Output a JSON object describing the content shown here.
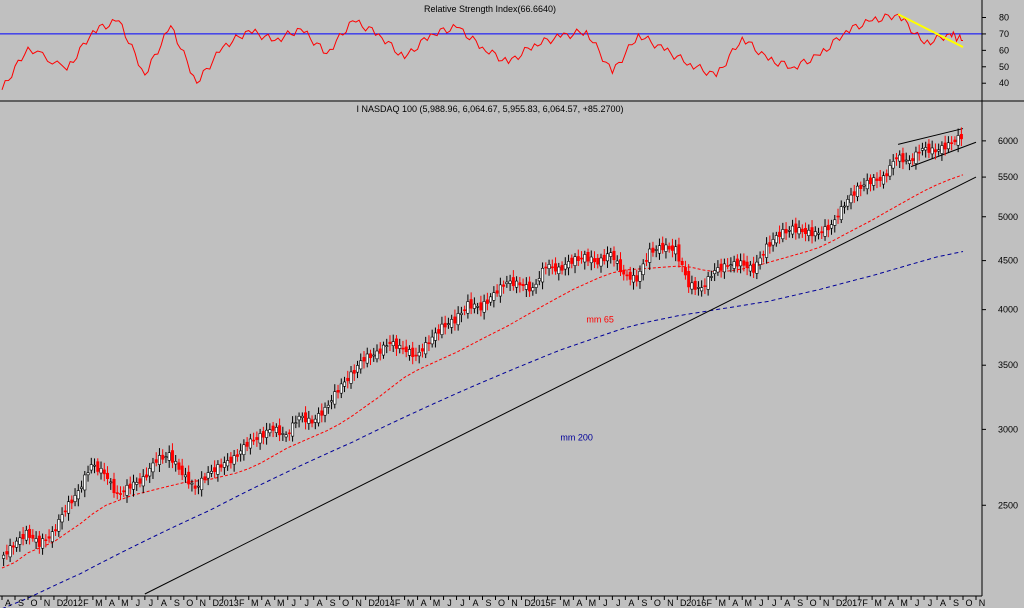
{
  "colors": {
    "background": "#c0c0c0",
    "up_candle": "#000000",
    "down_candle": "#ff0000",
    "rsi_line": "#ff0000",
    "rsi_level": "#0000ff",
    "ma65": "#ff0000",
    "ma200": "#000099",
    "trendline": "#000000",
    "rsi_trendline": "#ffff00"
  },
  "chart_data": [
    {
      "type": "line",
      "title": "Relative Strength Index(66.6640)",
      "ylim": [
        31,
        87
      ],
      "yticks": [
        40,
        50,
        60,
        70,
        80
      ],
      "reference_level": 70,
      "x": [
        "2011-08",
        "2011-10",
        "2012-01",
        "2012-03",
        "2012-05",
        "2012-07",
        "2012-09",
        "2012-11",
        "2013-01",
        "2013-03",
        "2013-05",
        "2013-07",
        "2013-09",
        "2013-11",
        "2014-01",
        "2014-03",
        "2014-05",
        "2014-07",
        "2014-09",
        "2014-11",
        "2015-01",
        "2015-03",
        "2015-05",
        "2015-07",
        "2015-09",
        "2015-11",
        "2016-01",
        "2016-03",
        "2016-05",
        "2016-07",
        "2016-09",
        "2016-11",
        "2017-01",
        "2017-03",
        "2017-05",
        "2017-07",
        "2017-09",
        "2017-10"
      ],
      "values": [
        36,
        62,
        48,
        72,
        78,
        45,
        75,
        40,
        62,
        72,
        66,
        73,
        58,
        78,
        70,
        55,
        70,
        74,
        62,
        52,
        64,
        68,
        72,
        46,
        70,
        60,
        52,
        44,
        68,
        54,
        50,
        57,
        72,
        78,
        82,
        64,
        70,
        66
      ],
      "trendline_label": "",
      "trendline": {
        "x": [
          "2017-05",
          "2017-10"
        ],
        "y": [
          82,
          62
        ]
      }
    },
    {
      "type": "line",
      "title": "I NASDAQ 100 (5,988.96, 6,064.67, 5,955.83, 6,064.57, +85.2700)",
      "scale": "log",
      "ylim": [
        2020,
        6400
      ],
      "yticks": [
        2500,
        3000,
        3500,
        4000,
        4500,
        5000,
        5500,
        6000
      ],
      "x_tick_labels": [
        "A",
        "S",
        "O",
        "N",
        "D",
        "2012",
        "F",
        "M",
        "A",
        "M",
        "J",
        "J",
        "A",
        "S",
        "O",
        "N",
        "D",
        "2013",
        "F",
        "M",
        "A",
        "M",
        "J",
        "J",
        "A",
        "S",
        "O",
        "N",
        "D",
        "2014",
        "F",
        "M",
        "A",
        "M",
        "J",
        "J",
        "A",
        "S",
        "O",
        "N",
        "D",
        "2015",
        "F",
        "M",
        "A",
        "M",
        "J",
        "J",
        "A",
        "S",
        "O",
        "N",
        "D",
        "2016",
        "F",
        "M",
        "A",
        "M",
        "J",
        "J",
        "A",
        "S",
        "O",
        "N",
        "D",
        "2017",
        "F",
        "M",
        "A",
        "M",
        "J",
        "J",
        "A",
        "S",
        "O",
        "N"
      ],
      "x_start": "2011-08",
      "x_end": "2017-11",
      "candle_weeks": [
        "2011-08",
        "2011-09",
        "2011-10",
        "2011-11",
        "2011-12",
        "2012-01",
        "2012-02",
        "2012-03",
        "2012-04",
        "2012-05",
        "2012-06",
        "2012-07",
        "2012-08",
        "2012-09",
        "2012-10",
        "2012-11",
        "2012-12",
        "2013-01",
        "2013-02",
        "2013-03",
        "2013-04",
        "2013-05",
        "2013-06",
        "2013-07",
        "2013-08",
        "2013-09",
        "2013-10",
        "2013-11",
        "2013-12",
        "2014-01",
        "2014-02",
        "2014-03",
        "2014-04",
        "2014-05",
        "2014-06",
        "2014-07",
        "2014-08",
        "2014-09",
        "2014-10",
        "2014-11",
        "2014-12",
        "2015-01",
        "2015-02",
        "2015-03",
        "2015-04",
        "2015-05",
        "2015-06",
        "2015-07",
        "2015-08",
        "2015-09",
        "2015-10",
        "2015-11",
        "2015-12",
        "2016-01",
        "2016-02",
        "2016-03",
        "2016-04",
        "2016-05",
        "2016-06",
        "2016-07",
        "2016-08",
        "2016-09",
        "2016-10",
        "2016-11",
        "2016-12",
        "2017-01",
        "2017-02",
        "2017-03",
        "2017-04",
        "2017-05",
        "2017-06",
        "2017-07",
        "2017-08",
        "2017-09",
        "2017-10"
      ],
      "price": [
        2200,
        2270,
        2340,
        2280,
        2330,
        2480,
        2580,
        2760,
        2700,
        2560,
        2620,
        2660,
        2790,
        2820,
        2700,
        2600,
        2700,
        2750,
        2800,
        2900,
        2950,
        3010,
        2950,
        3100,
        3050,
        3150,
        3300,
        3420,
        3560,
        3600,
        3700,
        3640,
        3580,
        3700,
        3840,
        3900,
        4050,
        4020,
        4150,
        4280,
        4250,
        4200,
        4450,
        4400,
        4500,
        4540,
        4480,
        4580,
        4350,
        4300,
        4600,
        4650,
        4620,
        4250,
        4200,
        4400,
        4450,
        4480,
        4400,
        4650,
        4800,
        4860,
        4820,
        4800,
        4900,
        5150,
        5350,
        5450,
        5480,
        5780,
        5700,
        5900,
        5850,
        5950,
        6064.57
      ],
      "series": [
        {
          "name": "mm 65",
          "values": [
            2150,
            2180,
            2230,
            2260,
            2290,
            2340,
            2390,
            2450,
            2500,
            2530,
            2560,
            2580,
            2600,
            2620,
            2640,
            2650,
            2660,
            2680,
            2700,
            2730,
            2770,
            2820,
            2870,
            2910,
            2950,
            2990,
            3040,
            3100,
            3170,
            3240,
            3320,
            3400,
            3460,
            3510,
            3560,
            3610,
            3670,
            3730,
            3790,
            3850,
            3920,
            3990,
            4060,
            4130,
            4200,
            4260,
            4320,
            4370,
            4400,
            4410,
            4420,
            4430,
            4440,
            4430,
            4400,
            4380,
            4390,
            4410,
            4440,
            4480,
            4520,
            4560,
            4600,
            4650,
            4720,
            4800,
            4880,
            4960,
            5050,
            5140,
            5230,
            5320,
            5400,
            5470,
            5530
          ]
        },
        {
          "name": "mm 200",
          "values": [
            1950,
            1975,
            2000,
            2030,
            2060,
            2090,
            2120,
            2155,
            2190,
            2225,
            2260,
            2295,
            2330,
            2365,
            2400,
            2435,
            2470,
            2510,
            2550,
            2590,
            2630,
            2670,
            2710,
            2750,
            2790,
            2830,
            2870,
            2910,
            2955,
            3000,
            3045,
            3090,
            3135,
            3180,
            3225,
            3270,
            3315,
            3360,
            3405,
            3450,
            3495,
            3540,
            3585,
            3630,
            3670,
            3710,
            3750,
            3790,
            3830,
            3860,
            3890,
            3915,
            3940,
            3960,
            3980,
            4000,
            4020,
            4040,
            4060,
            4080,
            4110,
            4140,
            4170,
            4200,
            4235,
            4270,
            4305,
            4340,
            4380,
            4420,
            4460,
            4500,
            4540,
            4570,
            4600
          ]
        }
      ],
      "annotations": [
        {
          "text": "mm 65",
          "x": "2015-05",
          "y": 3880
        },
        {
          "text": "mm 200",
          "x": "2015-03",
          "y": 2920
        }
      ],
      "trendline": {
        "x": [
          "2012-07",
          "2017-11"
        ],
        "y": [
          2020,
          5500
        ]
      },
      "channel": {
        "upper": {
          "x": [
            "2017-05",
            "2017-10"
          ],
          "y": [
            5950,
            6180
          ]
        },
        "lower": {
          "x": [
            "2017-06",
            "2017-11"
          ],
          "y": [
            5640,
            5980
          ]
        }
      }
    }
  ]
}
